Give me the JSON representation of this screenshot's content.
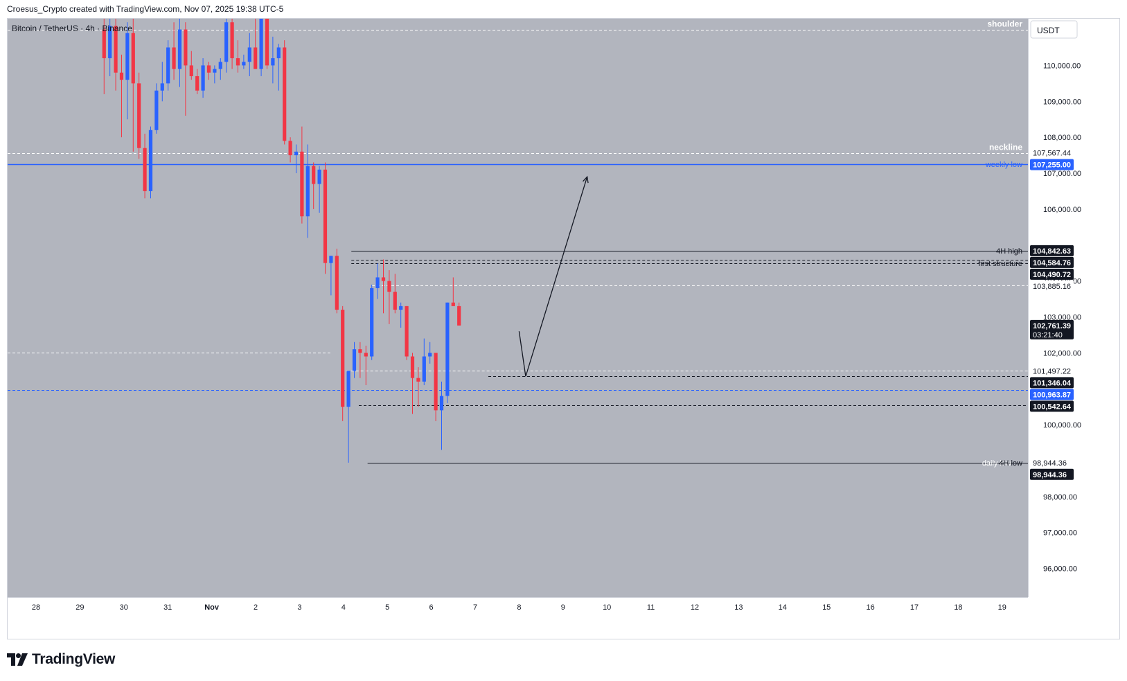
{
  "header": {
    "attribution": "Croesus_Crypto created with TradingView.com, Nov 07, 2025 19:38 UTC-5"
  },
  "footer": {
    "brand": "TradingView"
  },
  "colors": {
    "background": "#b2b5be",
    "up": "#2962ff",
    "down": "#f23645",
    "accent": "#2962ff"
  },
  "chart_data": {
    "type": "candlestick",
    "title": "Bitcoin / TetherUS · 4h · Binance",
    "currency": "USDT",
    "ylim": [
      95200,
      111300
    ],
    "yticks": [
      96000,
      97000,
      98000,
      99000,
      100000,
      101000,
      102000,
      103000,
      104000,
      105000,
      106000,
      107000,
      108000,
      109000,
      110000
    ],
    "ytick_labels": [
      "96,000.00",
      "97,000.00",
      "98,000.00",
      "",
      "100,000.00",
      "",
      "102,000.00",
      "103,000.00",
      "104,000.00",
      "",
      "106,000.00",
      "107,000.00",
      "108,000.00",
      "109,000.00",
      "110,000.00"
    ],
    "x_labels": [
      {
        "t": 0,
        "label": "28"
      },
      {
        "t": 1,
        "label": "29"
      },
      {
        "t": 2,
        "label": "30"
      },
      {
        "t": 3,
        "label": "31"
      },
      {
        "t": 4,
        "label": "Nov"
      },
      {
        "t": 5,
        "label": "2"
      },
      {
        "t": 6,
        "label": "3"
      },
      {
        "t": 7,
        "label": "4"
      },
      {
        "t": 8,
        "label": "5"
      },
      {
        "t": 9,
        "label": "6"
      },
      {
        "t": 10,
        "label": "7"
      },
      {
        "t": 11,
        "label": "8"
      },
      {
        "t": 12,
        "label": "9"
      },
      {
        "t": 13,
        "label": "10"
      },
      {
        "t": 14,
        "label": "11"
      },
      {
        "t": 15,
        "label": "12"
      },
      {
        "t": 16,
        "label": "13"
      },
      {
        "t": 17,
        "label": "14"
      },
      {
        "t": 18,
        "label": "15"
      },
      {
        "t": 19,
        "label": "16"
      },
      {
        "t": 20,
        "label": "17"
      },
      {
        "t": 21,
        "label": "18"
      },
      {
        "t": 22,
        "label": "19"
      }
    ],
    "candles": [
      {
        "o": 111000,
        "h": 111500,
        "l": 109200,
        "c": 110200
      },
      {
        "o": 110200,
        "h": 111300,
        "l": 109700,
        "c": 111100
      },
      {
        "o": 111100,
        "h": 111400,
        "l": 109300,
        "c": 109800
      },
      {
        "o": 109800,
        "h": 110300,
        "l": 108000,
        "c": 109600
      },
      {
        "o": 109600,
        "h": 111200,
        "l": 108500,
        "c": 110900
      },
      {
        "o": 110900,
        "h": 111300,
        "l": 107600,
        "c": 109500
      },
      {
        "o": 109500,
        "h": 109800,
        "l": 107400,
        "c": 107700
      },
      {
        "o": 107700,
        "h": 108100,
        "l": 106300,
        "c": 106500
      },
      {
        "o": 106500,
        "h": 108300,
        "l": 106300,
        "c": 108200
      },
      {
        "o": 108200,
        "h": 109500,
        "l": 108100,
        "c": 109300
      },
      {
        "o": 109300,
        "h": 110100,
        "l": 109000,
        "c": 109500
      },
      {
        "o": 109500,
        "h": 110700,
        "l": 109300,
        "c": 110500
      },
      {
        "o": 110500,
        "h": 111200,
        "l": 109600,
        "c": 109900
      },
      {
        "o": 109900,
        "h": 111400,
        "l": 109400,
        "c": 111000
      },
      {
        "o": 111000,
        "h": 111200,
        "l": 108600,
        "c": 110000
      },
      {
        "o": 110000,
        "h": 110400,
        "l": 109600,
        "c": 109700
      },
      {
        "o": 109700,
        "h": 109900,
        "l": 109200,
        "c": 109300
      },
      {
        "o": 109300,
        "h": 110200,
        "l": 109100,
        "c": 110000
      },
      {
        "o": 110000,
        "h": 110100,
        "l": 109600,
        "c": 109800
      },
      {
        "o": 109800,
        "h": 110000,
        "l": 109500,
        "c": 109900
      },
      {
        "o": 109900,
        "h": 110200,
        "l": 109600,
        "c": 110100
      },
      {
        "o": 110100,
        "h": 111300,
        "l": 109800,
        "c": 111200
      },
      {
        "o": 111200,
        "h": 111300,
        "l": 109900,
        "c": 110200
      },
      {
        "o": 110200,
        "h": 110700,
        "l": 109800,
        "c": 110000
      },
      {
        "o": 110000,
        "h": 110300,
        "l": 109900,
        "c": 110100
      },
      {
        "o": 110100,
        "h": 110900,
        "l": 109700,
        "c": 110500
      },
      {
        "o": 110500,
        "h": 111500,
        "l": 109900,
        "c": 109900
      },
      {
        "o": 109900,
        "h": 111400,
        "l": 109700,
        "c": 111300
      },
      {
        "o": 111300,
        "h": 111500,
        "l": 109900,
        "c": 110000
      },
      {
        "o": 110000,
        "h": 110800,
        "l": 109500,
        "c": 110200
      },
      {
        "o": 110200,
        "h": 110600,
        "l": 109300,
        "c": 110500
      },
      {
        "o": 110500,
        "h": 110700,
        "l": 107800,
        "c": 107900
      },
      {
        "o": 107900,
        "h": 108000,
        "l": 107300,
        "c": 107500
      },
      {
        "o": 107500,
        "h": 107800,
        "l": 107000,
        "c": 107600
      },
      {
        "o": 107600,
        "h": 108300,
        "l": 105600,
        "c": 105800
      },
      {
        "o": 105800,
        "h": 107800,
        "l": 105200,
        "c": 107200
      },
      {
        "o": 107200,
        "h": 107300,
        "l": 106000,
        "c": 106700
      },
      {
        "o": 106700,
        "h": 107200,
        "l": 105900,
        "c": 107100
      },
      {
        "o": 107100,
        "h": 107300,
        "l": 104200,
        "c": 104500
      },
      {
        "o": 104500,
        "h": 104700,
        "l": 103600,
        "c": 104700
      },
      {
        "o": 104700,
        "h": 104900,
        "l": 103100,
        "c": 103200
      },
      {
        "o": 103200,
        "h": 103300,
        "l": 100100,
        "c": 100500
      },
      {
        "o": 100500,
        "h": 101500,
        "l": 98944,
        "c": 101500
      },
      {
        "o": 101500,
        "h": 102300,
        "l": 101300,
        "c": 102100
      },
      {
        "o": 102100,
        "h": 102300,
        "l": 101300,
        "c": 102000
      },
      {
        "o": 102000,
        "h": 102200,
        "l": 101100,
        "c": 101900
      },
      {
        "o": 101900,
        "h": 103900,
        "l": 101800,
        "c": 103800
      },
      {
        "o": 103800,
        "h": 104490,
        "l": 103500,
        "c": 104100
      },
      {
        "o": 104100,
        "h": 104600,
        "l": 103100,
        "c": 104000
      },
      {
        "o": 104000,
        "h": 104300,
        "l": 102800,
        "c": 103700
      },
      {
        "o": 103700,
        "h": 104200,
        "l": 103100,
        "c": 103200
      },
      {
        "o": 103200,
        "h": 103400,
        "l": 102700,
        "c": 103300
      },
      {
        "o": 103300,
        "h": 103300,
        "l": 101800,
        "c": 101900
      },
      {
        "o": 101900,
        "h": 102000,
        "l": 100300,
        "c": 101300
      },
      {
        "o": 101300,
        "h": 101600,
        "l": 100500,
        "c": 101200
      },
      {
        "o": 101200,
        "h": 102400,
        "l": 101100,
        "c": 101900
      },
      {
        "o": 101900,
        "h": 102300,
        "l": 101700,
        "c": 102000
      },
      {
        "o": 102000,
        "h": 102000,
        "l": 100100,
        "c": 100400
      },
      {
        "o": 100400,
        "h": 101200,
        "l": 99300,
        "c": 100800
      },
      {
        "o": 100800,
        "h": 103400,
        "l": 100600,
        "c": 103400
      },
      {
        "o": 103400,
        "h": 104100,
        "l": 103300,
        "c": 103300
      },
      {
        "o": 103300,
        "h": 103400,
        "l": 102761,
        "c": 102761
      }
    ],
    "lines": [
      {
        "type": "dashed",
        "color": "#ffffff",
        "price": 111000,
        "label": "shoulder"
      },
      {
        "type": "dashed",
        "color": "#ffffff",
        "price": 107567.44,
        "label": "neckline"
      },
      {
        "type": "solid",
        "color": "#2962ff",
        "price": 107255.0,
        "label": "weekly low"
      },
      {
        "type": "solid",
        "color": "#131722",
        "price": 104842.63,
        "label": "4H high",
        "t_start": 7.18
      },
      {
        "type": "dashed",
        "color": "#131722",
        "price": 104584.76,
        "t_start": 7.18
      },
      {
        "type": "dashed",
        "color": "#131722",
        "price": 104490.72,
        "label": "first structure",
        "t_start": 7.18
      },
      {
        "type": "dashed",
        "color": "#ffffff",
        "price": 103885.16,
        "t_start": 7.65
      },
      {
        "type": "dashed",
        "color": "#ffffff",
        "price": 102000,
        "t_start": -1,
        "t_end": 6.7
      },
      {
        "type": "dashed",
        "color": "#ffffff",
        "price": 101497.22,
        "t_start": 6.95
      },
      {
        "type": "dashed",
        "color": "#131722",
        "price": 101346.04,
        "t_start": 10.3
      },
      {
        "type": "dashed",
        "color": "#2962ff",
        "price": 100963.87
      },
      {
        "type": "dashed",
        "color": "#131722",
        "price": 100542.64,
        "t_start": 7.35
      },
      {
        "type": "solid",
        "color": "#131722",
        "price": 98944.36,
        "label": "4H low",
        "label2": "daily low",
        "t_start": 7.55
      }
    ],
    "arrow": [
      {
        "t": 11.0,
        "p": 102600
      },
      {
        "t": 11.15,
        "p": 101346
      },
      {
        "t": 12.55,
        "p": 106900
      }
    ],
    "price_tags": [
      {
        "price": 107567.44,
        "text": "107,567.44",
        "style": "white"
      },
      {
        "price": 107255.0,
        "text": "107,255.00",
        "style": "blue"
      },
      {
        "price": 104842.63,
        "text": "104,842.63",
        "style": "black"
      },
      {
        "price": 104584.76,
        "text": "104,584.76",
        "style": "black"
      },
      {
        "price": 104490.72,
        "text": "104,490.72",
        "style": "black"
      },
      {
        "price": 103885.16,
        "text": "103,885.16",
        "style": "white"
      },
      {
        "price": 102761.39,
        "text": "102,761.39",
        "sub": "03:21:40",
        "style": "black"
      },
      {
        "price": 101497.22,
        "text": "101,497.22",
        "style": "white"
      },
      {
        "price": 101346.04,
        "text": "101,346.04",
        "style": "black"
      },
      {
        "price": 100963.87,
        "text": "100,963.87",
        "style": "blue"
      },
      {
        "price": 100542.64,
        "text": "100,542.64",
        "style": "black"
      },
      {
        "price": 98944.36,
        "text": "98,944.36",
        "style": "white"
      },
      {
        "price": 98944.36,
        "text": "98,944.36",
        "style": "black"
      }
    ]
  }
}
